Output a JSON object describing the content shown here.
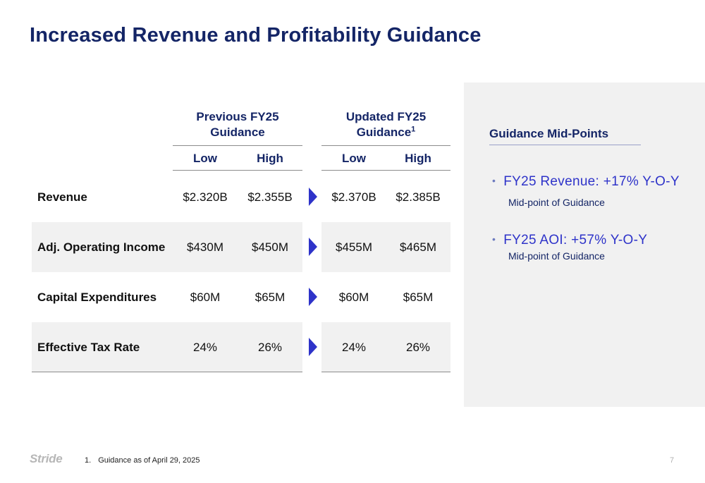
{
  "title": "Increased Revenue and Profitability Guidance",
  "table": {
    "groups": [
      {
        "label": "Previous FY25\nGuidance"
      },
      {
        "label": "Updated FY25\nGuidance",
        "superscript": "1"
      }
    ],
    "subheaders": [
      "Low",
      "High",
      "Low",
      "High"
    ],
    "rows": [
      {
        "label": "Revenue",
        "prev_low": "$2.320B",
        "prev_high": "$2.355B",
        "upd_low": "$2.370B",
        "upd_high": "$2.385B"
      },
      {
        "label": "Adj. Operating Income",
        "prev_low": "$430M",
        "prev_high": "$450M",
        "upd_low": "$455M",
        "upd_high": "$465M"
      },
      {
        "label": "Capital Expenditures",
        "prev_low": "$60M",
        "prev_high": "$65M",
        "upd_low": "$60M",
        "upd_high": "$65M"
      },
      {
        "label": "Effective Tax Rate",
        "prev_low": "24%",
        "prev_high": "26%",
        "upd_low": "24%",
        "upd_high": "26%"
      }
    ],
    "arrow_color": "#2e33c9",
    "shade_color": "#f1f1f1"
  },
  "panel": {
    "heading": "Guidance Mid-Points",
    "bullets": [
      {
        "text": "FY25 Revenue: +17% Y-O-Y",
        "sub": "Mid-point of Guidance"
      },
      {
        "text": "FY25 AOI: +57% Y-O-Y",
        "sub": "Mid-point of Guidance"
      }
    ]
  },
  "footer": {
    "logo": "Stride",
    "footnote_number": "1.",
    "footnote_text": "Guidance as of April 29, 2025",
    "page_number": "7"
  },
  "colors": {
    "title": "#142566",
    "accent": "#2e33c9"
  }
}
